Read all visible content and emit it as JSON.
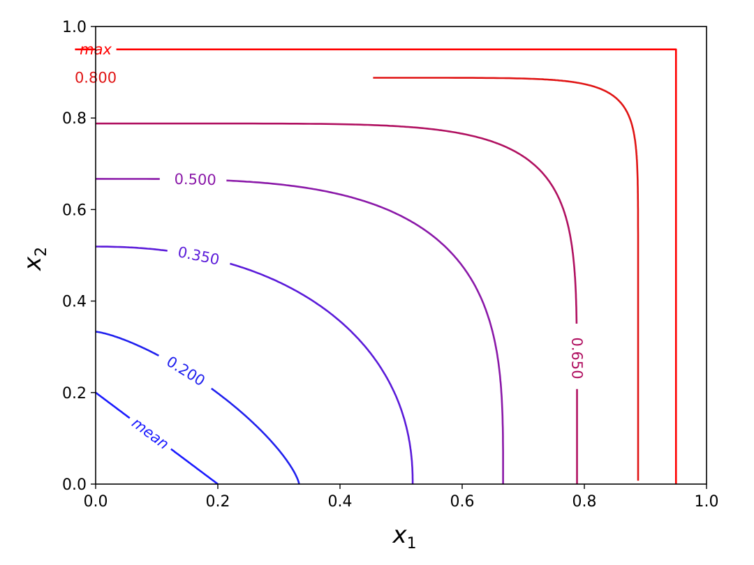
{
  "chart_data": {
    "type": "line",
    "title": "",
    "xlabel": "x",
    "xlabel_sub": "1",
    "ylabel": "x",
    "ylabel_sub": "2",
    "xlim": [
      0.0,
      1.0
    ],
    "ylim": [
      0.0,
      1.0
    ],
    "x_ticks": [
      "0.0",
      "0.2",
      "0.4",
      "0.6",
      "0.8",
      "1.0"
    ],
    "y_ticks": [
      "0.0",
      "0.2",
      "0.4",
      "0.6",
      "0.8",
      "1.0"
    ],
    "grid": false,
    "series": [
      {
        "label": "mean",
        "color": "#1a1aff",
        "p": 1.0,
        "c": 0.2,
        "label_style": "italic",
        "label_x": 0.09
      },
      {
        "label": "0.200",
        "color": "#2020ee",
        "p": 1.35,
        "c": 0.333,
        "label_style": "normal",
        "label_x": 0.147
      },
      {
        "label": "0.350",
        "color": "#5a1ad9",
        "p": 2.2,
        "c": 0.519,
        "label_style": "normal",
        "label_x": 0.168
      },
      {
        "label": "0.500",
        "color": "#8a18a8",
        "p": 3.5,
        "c": 0.667,
        "label_style": "normal",
        "label_x": 0.16
      },
      {
        "label": "0.650",
        "color": "#b01060",
        "p": 6.5,
        "c": 0.788,
        "label_style": "normal",
        "label_y": 0.28
      },
      {
        "label": "0.800",
        "color": "#e01414",
        "p": 15.0,
        "c": 0.888,
        "label_style": "normal",
        "label_x": 0.2
      },
      {
        "label": "max",
        "color": "#ff0000",
        "p": "inf",
        "c": 0.95,
        "label_style": "italic",
        "label_x": 0.141
      }
    ]
  }
}
